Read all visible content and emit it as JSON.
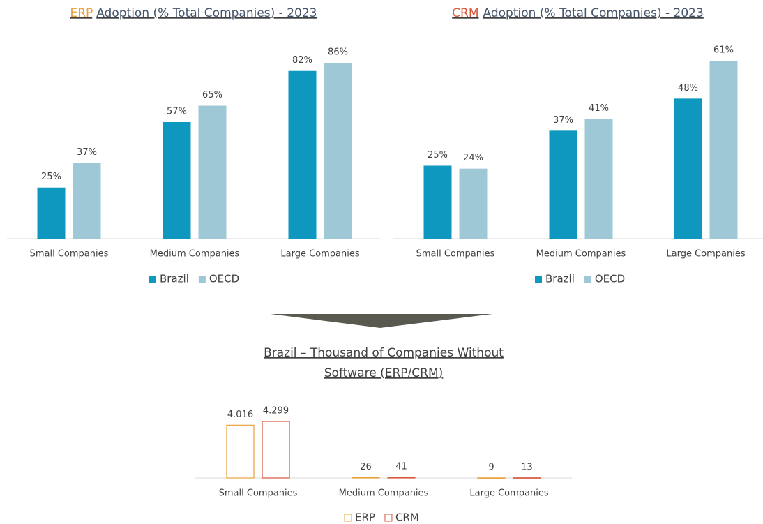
{
  "chart_data": [
    {
      "type": "bar",
      "title_parts": [
        {
          "text": "ERP",
          "color": "#e8a03a"
        },
        {
          "text": "Adoption (% Total Companies) - 2023",
          "color": "#44546a"
        }
      ],
      "categories": [
        "Small Companies",
        "Medium Companies",
        "Large Companies"
      ],
      "series": [
        {
          "name": "Brazil",
          "color": "#0e98c0",
          "values": [
            25,
            57,
            82
          ],
          "value_labels": [
            "25%",
            "57%",
            "82%"
          ]
        },
        {
          "name": "OECD",
          "color": "#9fc8d6",
          "values": [
            37,
            65,
            86
          ],
          "value_labels": [
            "37%",
            "65%",
            "86%"
          ]
        }
      ]
    },
    {
      "type": "bar",
      "title_parts": [
        {
          "text": "CRM",
          "color": "#d9573b"
        },
        {
          "text": "Adoption (% Total Companies) - 2023",
          "color": "#44546a"
        }
      ],
      "categories": [
        "Small Companies",
        "Medium Companies",
        "Large Companies"
      ],
      "series": [
        {
          "name": "Brazil",
          "color": "#0e98c0",
          "values": [
            25,
            37,
            48
          ],
          "value_labels": [
            "25%",
            "37%",
            "48%"
          ]
        },
        {
          "name": "OECD",
          "color": "#9fc8d6",
          "values": [
            24,
            41,
            61
          ],
          "value_labels": [
            "24%",
            "41%",
            "61%"
          ]
        }
      ]
    },
    {
      "type": "bar",
      "bar_style": "outline",
      "title_lines": [
        "Brazil – Thousand of Companies Without",
        "Software (ERP/CRM)"
      ],
      "categories": [
        "Small Companies",
        "Medium Companies",
        "Large Companies"
      ],
      "series": [
        {
          "name": "ERP",
          "color": "#e8a03a",
          "values": [
            4016,
            26,
            9
          ],
          "value_labels": [
            "4.016",
            "26",
            "9"
          ]
        },
        {
          "name": "CRM",
          "color": "#d9573b",
          "values": [
            4299,
            41,
            13
          ],
          "value_labels": [
            "4.299",
            "41",
            "13"
          ]
        }
      ]
    }
  ]
}
